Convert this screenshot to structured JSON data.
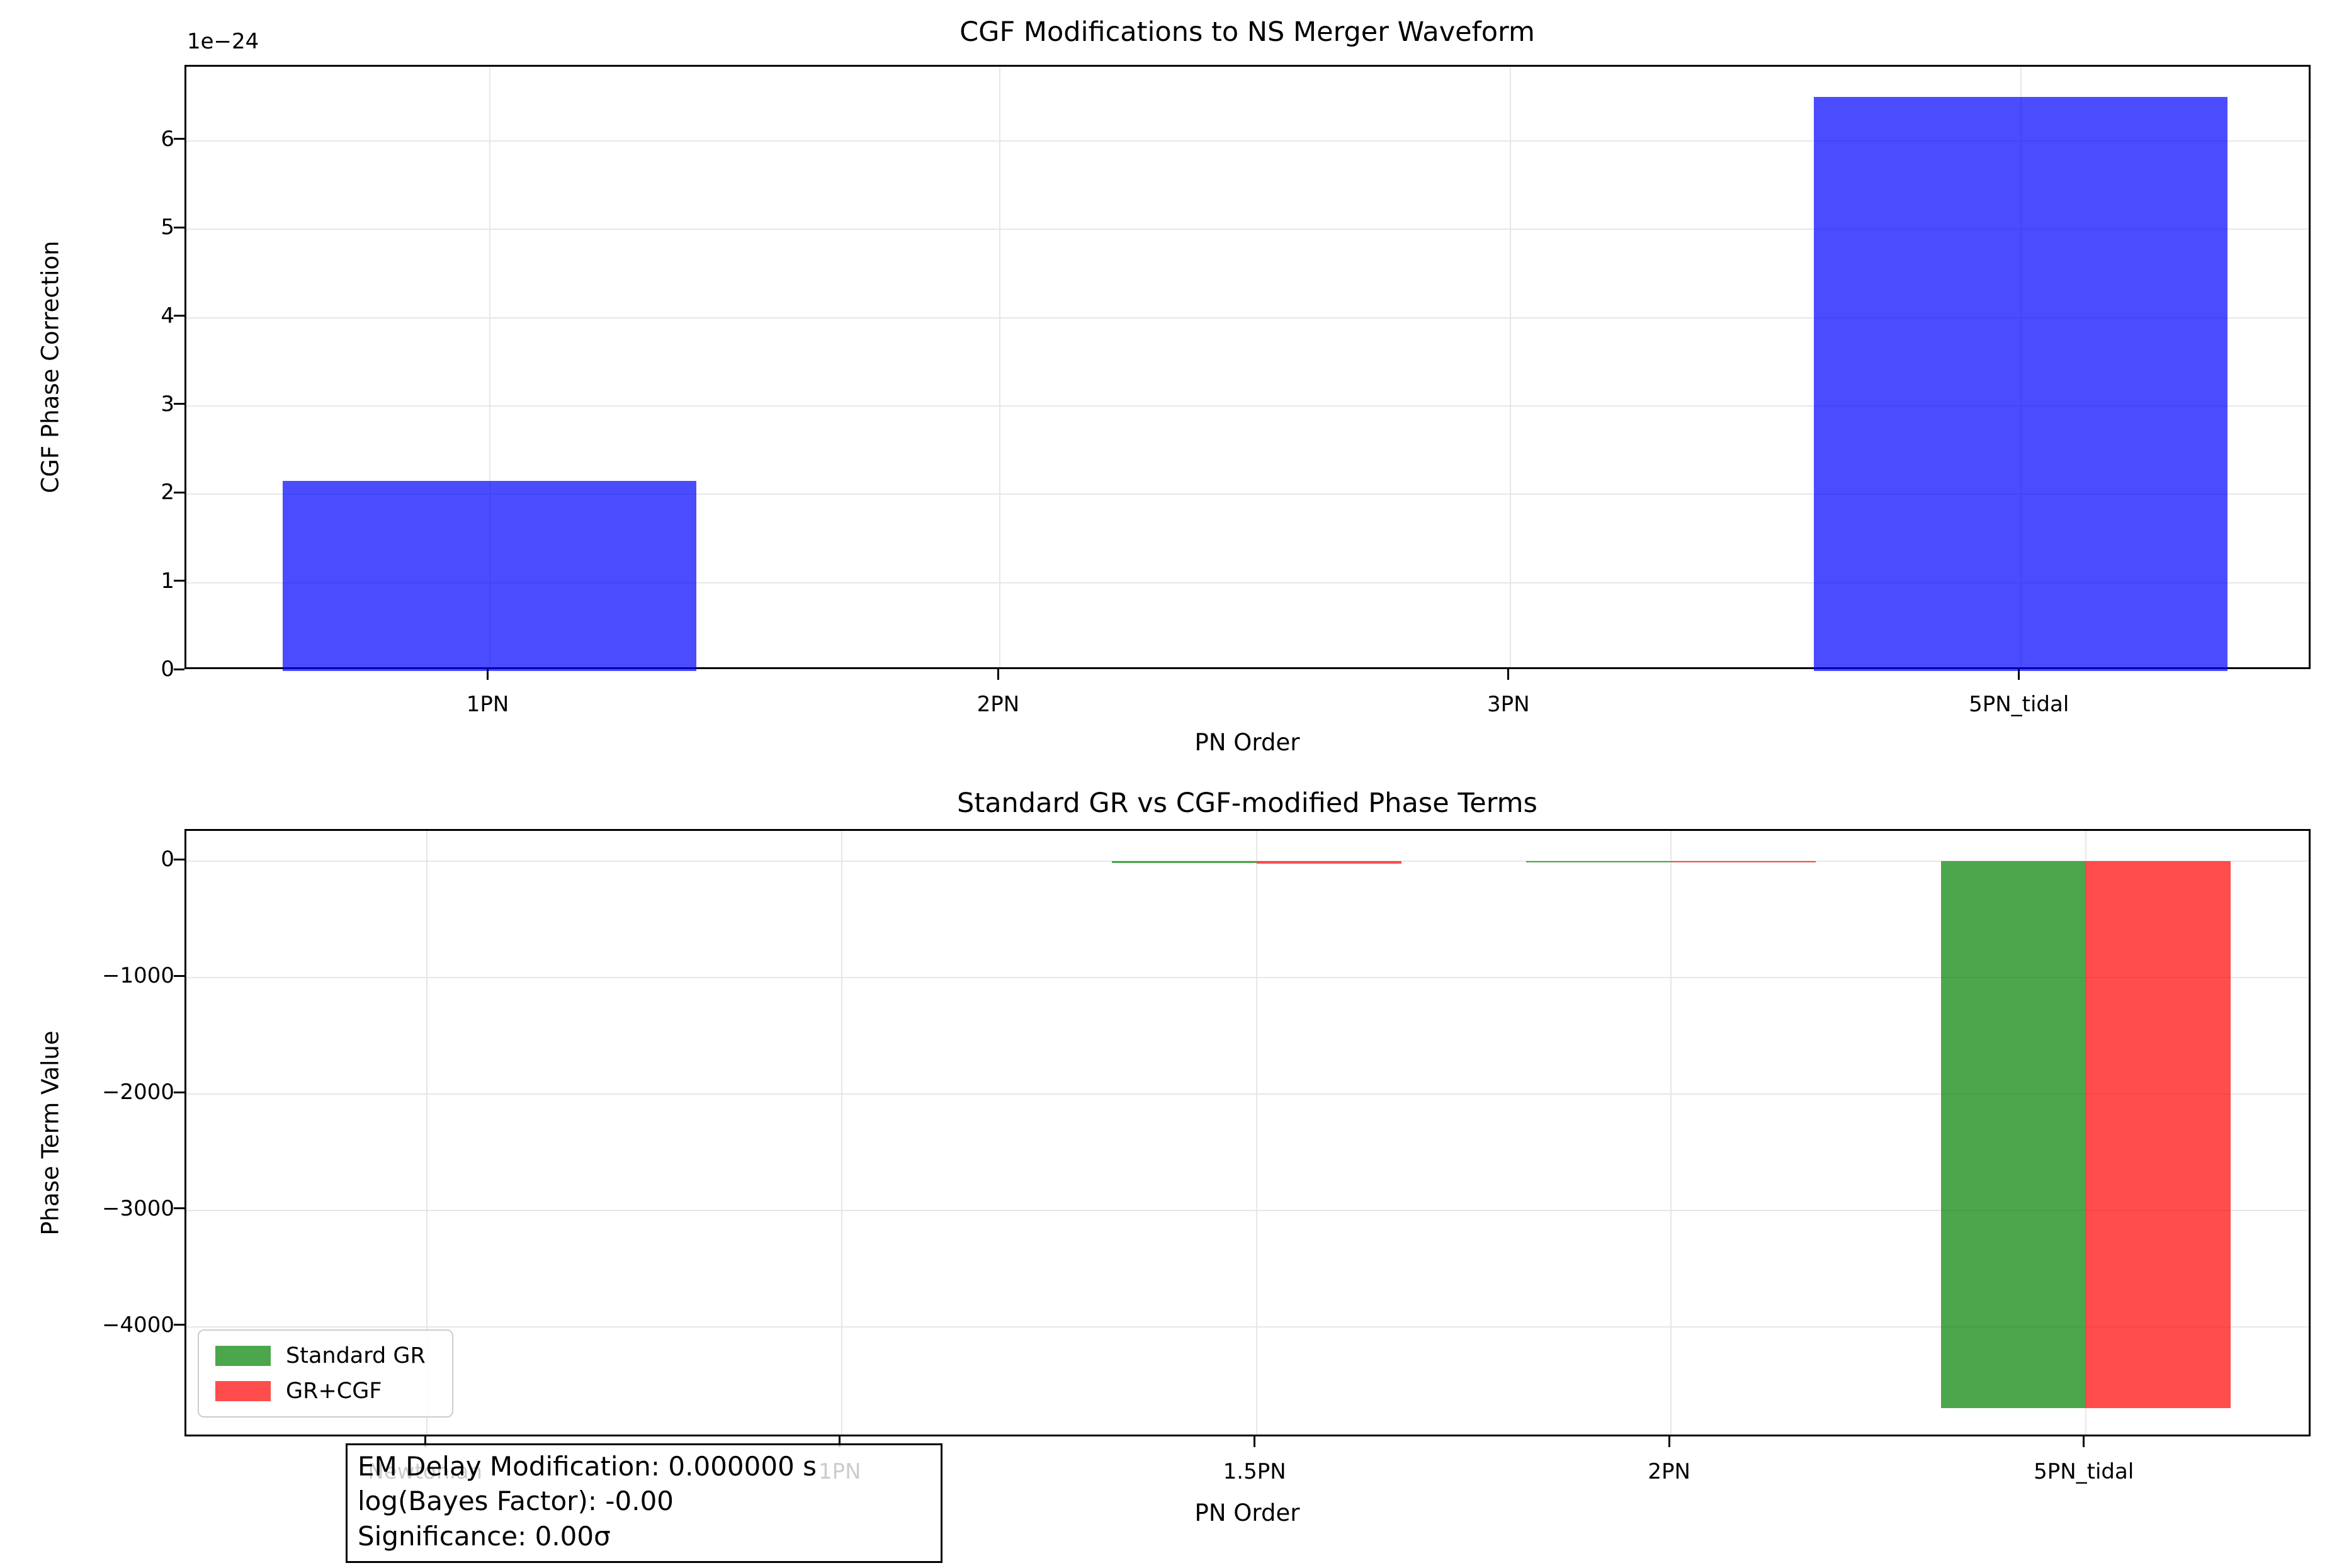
{
  "colors": {
    "background": "#ffffff",
    "spine": "#000000",
    "grid": "#e7e7e7",
    "blue_bar": "rgba(0,0,255,0.7)",
    "green_bar": "rgba(0,128,0,0.7)",
    "red_bar": "rgba(255,0,0,0.7)",
    "legend_border": "#cccccc"
  },
  "chart_data": [
    {
      "type": "bar",
      "title": "CGF Modifications to NS Merger Waveform",
      "xlabel": "PN Order",
      "ylabel": "CGF Phase Correction",
      "offset_text": "1e−24",
      "value_scale": "values are in units of 1e-24",
      "categories": [
        "1PN",
        "2PN",
        "3PN",
        "5PN_tidal"
      ],
      "values": [
        2.15,
        0,
        0,
        6.5
      ],
      "bar_color": "rgba(0,0,255,0.7)",
      "yticks": [
        0,
        1,
        2,
        3,
        4,
        5,
        6
      ],
      "ytick_labels": [
        "0",
        "1",
        "2",
        "3",
        "4",
        "5",
        "6"
      ],
      "ylim": [
        0,
        6.84
      ],
      "grid": true,
      "legend_position": "none"
    },
    {
      "type": "grouped_bar",
      "title": "Standard GR vs CGF-modified Phase Terms",
      "xlabel": "PN Order",
      "ylabel": "Phase Term Value",
      "categories": [
        "Newtonian",
        "1PN",
        "1.5PN",
        "2PN",
        "5PN_tidal"
      ],
      "series": [
        {
          "name": "Standard GR",
          "color": "rgba(0,128,0,0.7)",
          "values": [
            0,
            0,
            -16,
            -8,
            -4700
          ]
        },
        {
          "name": "GR+CGF",
          "color": "rgba(255,0,0,0.7)",
          "values": [
            0,
            0,
            -18,
            -9,
            -4700
          ]
        }
      ],
      "yticks": [
        0,
        -1000,
        -2000,
        -3000,
        -4000
      ],
      "ytick_labels": [
        "0",
        "−1000",
        "−2000",
        "−3000",
        "−4000"
      ],
      "ylim": [
        -4960,
        262
      ],
      "grid": true,
      "legend_position": "lower left"
    }
  ],
  "annotation_box": {
    "lines": [
      "EM Delay Modification: 0.000000 s",
      "log(Bayes Factor): -0.00",
      "Significance: 0.00σ"
    ]
  }
}
